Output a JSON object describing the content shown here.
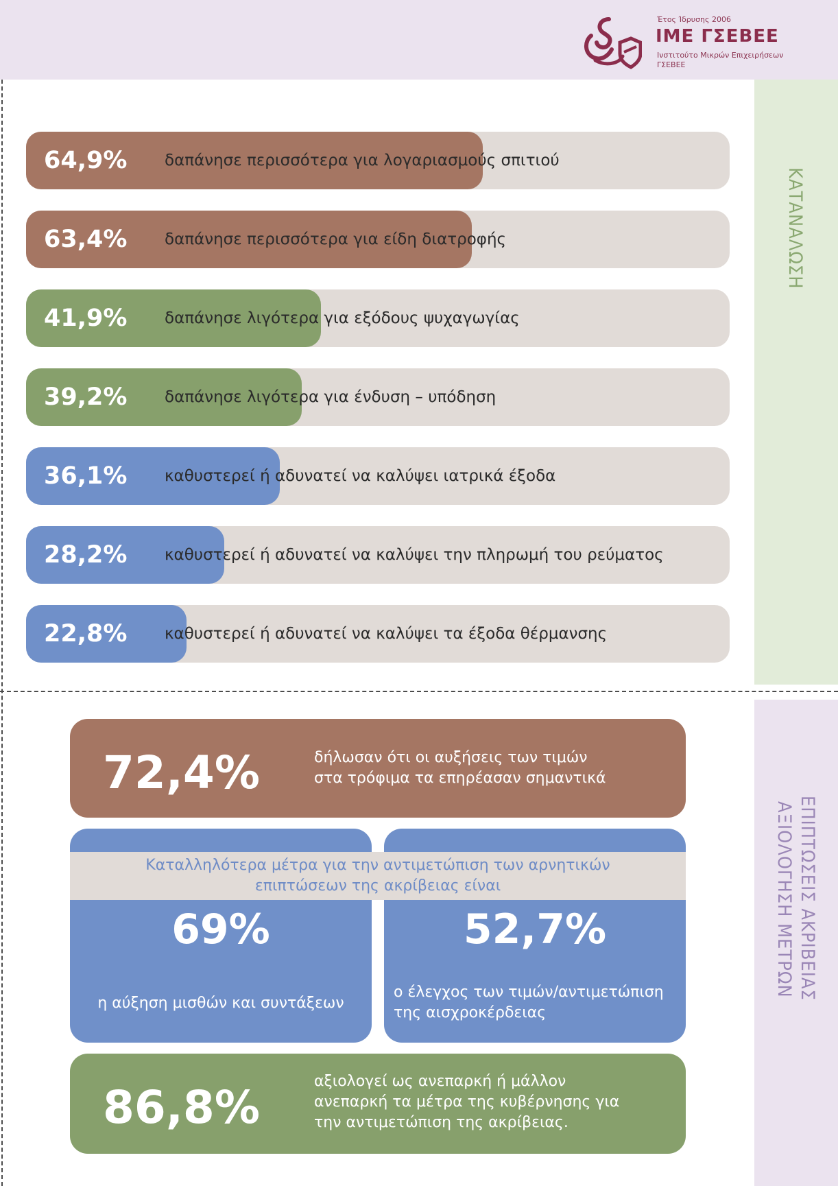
{
  "header": {
    "established": "Έτος Ίδρυσης 2006",
    "brand": "ΙΜΕ ΓΣΕΒΕΕ",
    "subtitle_line1": "Ινστιτούτο Μικρών Επιχειρήσεων",
    "subtitle_line2": "ΓΣΕΒΕΕ",
    "logo_icon": "ime-gsevee-logo-icon",
    "brand_color": "#8b2d4c"
  },
  "side": {
    "top": "ΚΑΤΑΝΑΛΩΣΗ",
    "bottom_line1": "ΕΠΙΠΤΩΣΕΙΣ ΑΚΡΙΒΕΙΑΣ",
    "bottom_line2": "ΑΞΙΟΛΟΓΗΣΗ ΜΕΤΡΩΝ"
  },
  "bars": [
    {
      "pct": "64,9%",
      "value": 64.9,
      "label": "δαπάνησε περισσότερα για λογαριασμούς σπιτιού",
      "color": "#a57663"
    },
    {
      "pct": "63,4%",
      "value": 63.4,
      "label": "δαπάνησε περισσότερα για είδη διατροφής",
      "color": "#a57663"
    },
    {
      "pct": "41,9%",
      "value": 41.9,
      "label": "δαπάνησε λιγότερα για εξόδους ψυχαγωγίας",
      "color": "#87a06c"
    },
    {
      "pct": "39,2%",
      "value": 39.2,
      "label": "δαπάνησε λιγότερα για ένδυση – υπόδηση",
      "color": "#87a06c"
    },
    {
      "pct": "36,1%",
      "value": 36.1,
      "label": "καθυστερεί ή αδυνατεί να καλύψει ιατρικά έξοδα",
      "color": "#7090c9"
    },
    {
      "pct": "28,2%",
      "value": 28.2,
      "label": "καθυστερεί ή αδυνατεί να καλύψει την πληρωμή του ρεύματος",
      "color": "#7090c9"
    },
    {
      "pct": "22,8%",
      "value": 22.8,
      "label": "καθυστερεί ή αδυνατεί να καλύψει τα έξοδα θέρμανσης",
      "color": "#7090c9"
    }
  ],
  "prices": {
    "pct": "72,4%",
    "line1": "δήλωσαν ότι οι αυξήσεις των τιμών",
    "line2": "στα τρόφιμα τα επηρέασαν σημαντικά"
  },
  "measures": {
    "heading_line1": "Καταλληλότερα μέτρα για την αντιμετώπιση των αρνητικών",
    "heading_line2": "επιπτώσεων της ακρίβειας είναι",
    "left": {
      "pct": "69%",
      "text": "η αύξηση μισθών και συντάξεων"
    },
    "right": {
      "pct": "52,7%",
      "line1": "ο έλεγχος των τιμών/αντιμετώπιση",
      "line2": "της αισχροκέρδειας"
    }
  },
  "government": {
    "pct": "86,8%",
    "line1": "αξιολογεί ως ανεπαρκή ή μάλλον",
    "line2": "ανεπαρκή τα μέτρα της κυβέρνησης για",
    "line3": "την αντιμετώπιση της ακρίβειας."
  }
}
